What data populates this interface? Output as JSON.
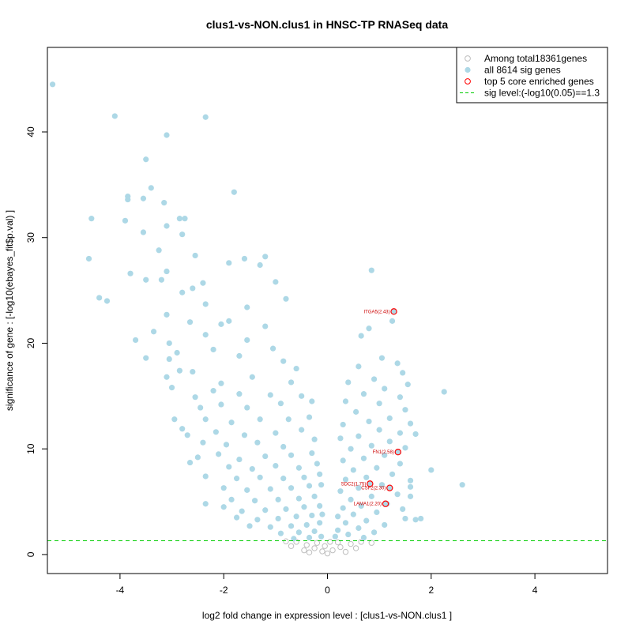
{
  "chart_data": {
    "type": "scatter",
    "title": "clus1-vs-NON.clus1 in HNSC-TP RNASeq data",
    "xlabel": "log2 fold change in expression level : [clus1-vs-NON.clus1 ]",
    "ylabel": "significance of gene : [-log10(ebayes_fit$p.val) ]",
    "xlim": [
      -5.4,
      5.4
    ],
    "ylim": [
      -1.8,
      48
    ],
    "xticks": [
      -4,
      -2,
      0,
      2,
      4
    ],
    "xtick_labels": [
      "-4",
      "-2",
      "0",
      "2",
      "4"
    ],
    "yticks": [
      0,
      10,
      20,
      30,
      40
    ],
    "ytick_labels": [
      "0",
      "10",
      "20",
      "30",
      "40"
    ],
    "sig_level": 1.3,
    "grid": false,
    "legend_position": "top-right",
    "legend": [
      {
        "label": "Among total18361genes",
        "marker": "open-circle",
        "color": "#bebebe"
      },
      {
        "label": "all 8614 sig genes",
        "marker": "filled-circle",
        "color": "#add8e6"
      },
      {
        "label": "top 5 core enriched genes",
        "marker": "open-circle",
        "color": "#ff0000"
      },
      {
        "label": "sig level:(-log10(0.05)==1.3",
        "marker": "dashed-line",
        "color": "#00cc00"
      }
    ],
    "colors": {
      "nonsig": "#bebebe",
      "sig": "#add8e6",
      "core": "#ff0000",
      "siglevel": "#00cc00"
    },
    "sig_points": [
      {
        "x": -5.3,
        "y": 44.5
      },
      {
        "x": -4.1,
        "y": 41.5
      },
      {
        "x": -2.35,
        "y": 41.4
      },
      {
        "x": -3.1,
        "y": 39.7
      },
      {
        "x": -3.5,
        "y": 37.4
      },
      {
        "x": -3.4,
        "y": 34.7
      },
      {
        "x": -3.85,
        "y": 33.9
      },
      {
        "x": -3.85,
        "y": 33.6
      },
      {
        "x": -3.55,
        "y": 33.7
      },
      {
        "x": -1.8,
        "y": 34.3
      },
      {
        "x": -3.15,
        "y": 33.3
      },
      {
        "x": -4.55,
        "y": 31.8
      },
      {
        "x": -3.9,
        "y": 31.6
      },
      {
        "x": -2.85,
        "y": 31.8
      },
      {
        "x": -2.75,
        "y": 31.8
      },
      {
        "x": -3.1,
        "y": 31.1
      },
      {
        "x": -3.55,
        "y": 30.5
      },
      {
        "x": -2.8,
        "y": 30.3
      },
      {
        "x": -3.25,
        "y": 28.8
      },
      {
        "x": -2.55,
        "y": 28.3
      },
      {
        "x": -4.6,
        "y": 28.0
      },
      {
        "x": -1.6,
        "y": 28.0
      },
      {
        "x": -1.2,
        "y": 28.2
      },
      {
        "x": -1.9,
        "y": 27.6
      },
      {
        "x": -1.3,
        "y": 27.4
      },
      {
        "x": -3.1,
        "y": 26.8
      },
      {
        "x": -3.8,
        "y": 26.6
      },
      {
        "x": -3.5,
        "y": 26.0
      },
      {
        "x": -3.2,
        "y": 26.0
      },
      {
        "x": -2.4,
        "y": 25.7
      },
      {
        "x": -2.6,
        "y": 25.2
      },
      {
        "x": -1.0,
        "y": 25.8
      },
      {
        "x": -4.4,
        "y": 24.3
      },
      {
        "x": -4.25,
        "y": 24.0
      },
      {
        "x": -2.8,
        "y": 24.8
      },
      {
        "x": -2.35,
        "y": 23.7
      },
      {
        "x": -0.8,
        "y": 24.2
      },
      {
        "x": -1.55,
        "y": 23.4
      },
      {
        "x": -3.1,
        "y": 22.7
      },
      {
        "x": -2.65,
        "y": 22.0
      },
      {
        "x": -1.9,
        "y": 22.1
      },
      {
        "x": -3.35,
        "y": 21.1
      },
      {
        "x": -2.05,
        "y": 21.8
      },
      {
        "x": -1.2,
        "y": 21.6
      },
      {
        "x": -3.7,
        "y": 20.3
      },
      {
        "x": -2.35,
        "y": 20.8
      },
      {
        "x": -1.55,
        "y": 20.3
      },
      {
        "x": -3.05,
        "y": 20.0
      },
      {
        "x": -3.5,
        "y": 18.6
      },
      {
        "x": -2.9,
        "y": 19.1
      },
      {
        "x": -2.2,
        "y": 19.4
      },
      {
        "x": -1.7,
        "y": 18.8
      },
      {
        "x": -3.05,
        "y": 18.5
      },
      {
        "x": -1.05,
        "y": 19.5
      },
      {
        "x": -0.85,
        "y": 18.3
      },
      {
        "x": -2.85,
        "y": 17.4
      },
      {
        "x": -2.6,
        "y": 17.3
      },
      {
        "x": -3.1,
        "y": 16.8
      },
      {
        "x": -2.05,
        "y": 16.2
      },
      {
        "x": -1.45,
        "y": 16.8
      },
      {
        "x": -0.6,
        "y": 17.6
      },
      {
        "x": -0.7,
        "y": 16.3
      },
      {
        "x": -3.0,
        "y": 15.8
      },
      {
        "x": -2.55,
        "y": 14.9
      },
      {
        "x": -2.2,
        "y": 15.5
      },
      {
        "x": -1.7,
        "y": 15.2
      },
      {
        "x": -1.1,
        "y": 15.1
      },
      {
        "x": -0.5,
        "y": 15.0
      },
      {
        "x": -2.45,
        "y": 13.9
      },
      {
        "x": -2.05,
        "y": 14.2
      },
      {
        "x": -1.55,
        "y": 13.9
      },
      {
        "x": -0.9,
        "y": 14.3
      },
      {
        "x": -0.3,
        "y": 14.5
      },
      {
        "x": -2.95,
        "y": 12.8
      },
      {
        "x": -2.35,
        "y": 12.8
      },
      {
        "x": -1.85,
        "y": 12.5
      },
      {
        "x": -1.3,
        "y": 12.8
      },
      {
        "x": -0.75,
        "y": 12.8
      },
      {
        "x": -0.35,
        "y": 13.0
      },
      {
        "x": -2.8,
        "y": 11.9
      },
      {
        "x": -2.15,
        "y": 11.6
      },
      {
        "x": -1.6,
        "y": 11.3
      },
      {
        "x": -1.0,
        "y": 11.5
      },
      {
        "x": -0.5,
        "y": 11.8
      },
      {
        "x": -2.7,
        "y": 11.3
      },
      {
        "x": -2.4,
        "y": 10.6
      },
      {
        "x": -1.95,
        "y": 10.4
      },
      {
        "x": -1.35,
        "y": 10.6
      },
      {
        "x": -0.85,
        "y": 10.2
      },
      {
        "x": -0.25,
        "y": 10.9
      },
      {
        "x": -2.5,
        "y": 9.2
      },
      {
        "x": -2.1,
        "y": 9.5
      },
      {
        "x": -1.7,
        "y": 9.0
      },
      {
        "x": -1.2,
        "y": 9.3
      },
      {
        "x": -0.7,
        "y": 9.4
      },
      {
        "x": -0.3,
        "y": 9.6
      },
      {
        "x": -2.65,
        "y": 8.7
      },
      {
        "x": -1.9,
        "y": 8.3
      },
      {
        "x": -1.45,
        "y": 8.1
      },
      {
        "x": -1.0,
        "y": 8.4
      },
      {
        "x": -0.55,
        "y": 8.2
      },
      {
        "x": -0.2,
        "y": 8.6
      },
      {
        "x": -2.35,
        "y": 7.4
      },
      {
        "x": -1.75,
        "y": 7.2
      },
      {
        "x": -1.3,
        "y": 7.3
      },
      {
        "x": -0.85,
        "y": 7.2
      },
      {
        "x": -0.45,
        "y": 7.3
      },
      {
        "x": -0.15,
        "y": 7.6
      },
      {
        "x": -2.0,
        "y": 6.3
      },
      {
        "x": -1.55,
        "y": 6.1
      },
      {
        "x": -1.1,
        "y": 6.2
      },
      {
        "x": -0.7,
        "y": 6.3
      },
      {
        "x": -0.35,
        "y": 6.5
      },
      {
        "x": -0.12,
        "y": 6.6
      },
      {
        "x": -2.35,
        "y": 4.8
      },
      {
        "x": -1.85,
        "y": 5.2
      },
      {
        "x": -1.4,
        "y": 5.1
      },
      {
        "x": -0.95,
        "y": 5.2
      },
      {
        "x": -0.55,
        "y": 5.3
      },
      {
        "x": -0.25,
        "y": 5.5
      },
      {
        "x": -2.0,
        "y": 4.5
      },
      {
        "x": -1.65,
        "y": 4.1
      },
      {
        "x": -1.2,
        "y": 4.2
      },
      {
        "x": -0.8,
        "y": 4.3
      },
      {
        "x": -0.45,
        "y": 4.5
      },
      {
        "x": -0.15,
        "y": 4.6
      },
      {
        "x": -1.75,
        "y": 3.5
      },
      {
        "x": -1.35,
        "y": 3.3
      },
      {
        "x": -0.95,
        "y": 3.4
      },
      {
        "x": -0.6,
        "y": 3.6
      },
      {
        "x": -0.3,
        "y": 3.7
      },
      {
        "x": -0.1,
        "y": 3.8
      },
      {
        "x": -1.5,
        "y": 2.7
      },
      {
        "x": -1.1,
        "y": 2.6
      },
      {
        "x": -0.7,
        "y": 2.7
      },
      {
        "x": -0.4,
        "y": 2.8
      },
      {
        "x": -0.15,
        "y": 3.0
      },
      {
        "x": -0.9,
        "y": 2.0
      },
      {
        "x": -0.55,
        "y": 2.1
      },
      {
        "x": -0.25,
        "y": 2.2
      },
      {
        "x": -0.65,
        "y": 1.5
      },
      {
        "x": -0.35,
        "y": 1.6
      },
      {
        "x": -0.12,
        "y": 1.7
      },
      {
        "x": 0.85,
        "y": 26.9
      },
      {
        "x": 1.25,
        "y": 22.1
      },
      {
        "x": 0.8,
        "y": 21.4
      },
      {
        "x": 0.65,
        "y": 20.7
      },
      {
        "x": 1.05,
        "y": 18.6
      },
      {
        "x": 1.35,
        "y": 18.1
      },
      {
        "x": 0.6,
        "y": 17.8
      },
      {
        "x": 1.45,
        "y": 17.2
      },
      {
        "x": 0.9,
        "y": 16.6
      },
      {
        "x": 0.4,
        "y": 16.3
      },
      {
        "x": 1.55,
        "y": 16.1
      },
      {
        "x": 2.25,
        "y": 15.4
      },
      {
        "x": 1.1,
        "y": 15.7
      },
      {
        "x": 0.7,
        "y": 15.2
      },
      {
        "x": 1.4,
        "y": 14.9
      },
      {
        "x": 0.35,
        "y": 14.5
      },
      {
        "x": 1.0,
        "y": 14.3
      },
      {
        "x": 1.5,
        "y": 13.7
      },
      {
        "x": 0.55,
        "y": 13.5
      },
      {
        "x": 1.2,
        "y": 12.9
      },
      {
        "x": 0.8,
        "y": 12.6
      },
      {
        "x": 1.6,
        "y": 12.4
      },
      {
        "x": 0.3,
        "y": 12.3
      },
      {
        "x": 1.0,
        "y": 11.8
      },
      {
        "x": 1.4,
        "y": 11.5
      },
      {
        "x": 0.6,
        "y": 11.2
      },
      {
        "x": 1.7,
        "y": 11.4
      },
      {
        "x": 0.25,
        "y": 11.0
      },
      {
        "x": 1.2,
        "y": 10.7
      },
      {
        "x": 0.85,
        "y": 10.3
      },
      {
        "x": 0.45,
        "y": 10.0
      },
      {
        "x": 1.5,
        "y": 10.1
      },
      {
        "x": 1.1,
        "y": 9.4
      },
      {
        "x": 0.7,
        "y": 9.1
      },
      {
        "x": 0.3,
        "y": 8.9
      },
      {
        "x": 1.4,
        "y": 8.6
      },
      {
        "x": 0.95,
        "y": 8.2
      },
      {
        "x": 0.5,
        "y": 8.0
      },
      {
        "x": 2.0,
        "y": 8.0
      },
      {
        "x": 1.25,
        "y": 7.6
      },
      {
        "x": 0.75,
        "y": 7.3
      },
      {
        "x": 0.35,
        "y": 7.1
      },
      {
        "x": 1.6,
        "y": 7.0
      },
      {
        "x": 1.05,
        "y": 6.6
      },
      {
        "x": 0.6,
        "y": 6.3
      },
      {
        "x": 2.6,
        "y": 6.6
      },
      {
        "x": 1.6,
        "y": 6.4
      },
      {
        "x": 0.25,
        "y": 6.0
      },
      {
        "x": 1.35,
        "y": 5.7
      },
      {
        "x": 0.85,
        "y": 5.5
      },
      {
        "x": 0.45,
        "y": 5.2
      },
      {
        "x": 1.6,
        "y": 5.5
      },
      {
        "x": 1.15,
        "y": 4.8
      },
      {
        "x": 0.65,
        "y": 4.6
      },
      {
        "x": 0.3,
        "y": 4.4
      },
      {
        "x": 1.45,
        "y": 4.3
      },
      {
        "x": 0.95,
        "y": 4.0
      },
      {
        "x": 0.5,
        "y": 3.8
      },
      {
        "x": 0.2,
        "y": 3.6
      },
      {
        "x": 1.5,
        "y": 3.4
      },
      {
        "x": 1.7,
        "y": 3.3
      },
      {
        "x": 1.8,
        "y": 3.4
      },
      {
        "x": 0.75,
        "y": 3.2
      },
      {
        "x": 0.35,
        "y": 3.0
      },
      {
        "x": 1.1,
        "y": 2.8
      },
      {
        "x": 0.6,
        "y": 2.5
      },
      {
        "x": 0.2,
        "y": 2.3
      },
      {
        "x": 0.9,
        "y": 2.1
      },
      {
        "x": 0.4,
        "y": 1.9
      },
      {
        "x": 0.15,
        "y": 1.7
      },
      {
        "x": 0.7,
        "y": 1.6
      }
    ],
    "nonsig_points": [
      {
        "x": -0.6,
        "y": 1.2
      },
      {
        "x": -0.4,
        "y": 0.9
      },
      {
        "x": -0.25,
        "y": 0.6
      },
      {
        "x": -0.1,
        "y": 0.3
      },
      {
        "x": 0.0,
        "y": 0.1
      },
      {
        "x": 0.1,
        "y": 0.4
      },
      {
        "x": 0.25,
        "y": 0.7
      },
      {
        "x": 0.45,
        "y": 1.0
      },
      {
        "x": 0.65,
        "y": 1.2
      },
      {
        "x": -0.8,
        "y": 1.25
      },
      {
        "x": 0.55,
        "y": 0.6
      },
      {
        "x": -0.45,
        "y": 0.4
      },
      {
        "x": -0.2,
        "y": 1.1
      },
      {
        "x": 0.2,
        "y": 1.15
      },
      {
        "x": 0.35,
        "y": 0.25
      },
      {
        "x": -0.35,
        "y": 0.2
      },
      {
        "x": -0.05,
        "y": 0.8
      },
      {
        "x": 0.05,
        "y": 1.2
      },
      {
        "x": 0.85,
        "y": 1.1
      },
      {
        "x": -0.7,
        "y": 0.8
      }
    ],
    "core_genes": [
      {
        "name": "ITGA5(2.43)",
        "x": 1.28,
        "y": 23.0
      },
      {
        "name": "FN1(2.58)",
        "x": 1.36,
        "y": 9.7
      },
      {
        "name": "SDC2(1.75)",
        "x": 0.82,
        "y": 6.7
      },
      {
        "name": "CSF2(2.30)",
        "x": 1.2,
        "y": 6.3
      },
      {
        "name": "LAMA1(2.20)",
        "x": 1.12,
        "y": 4.8
      }
    ]
  }
}
